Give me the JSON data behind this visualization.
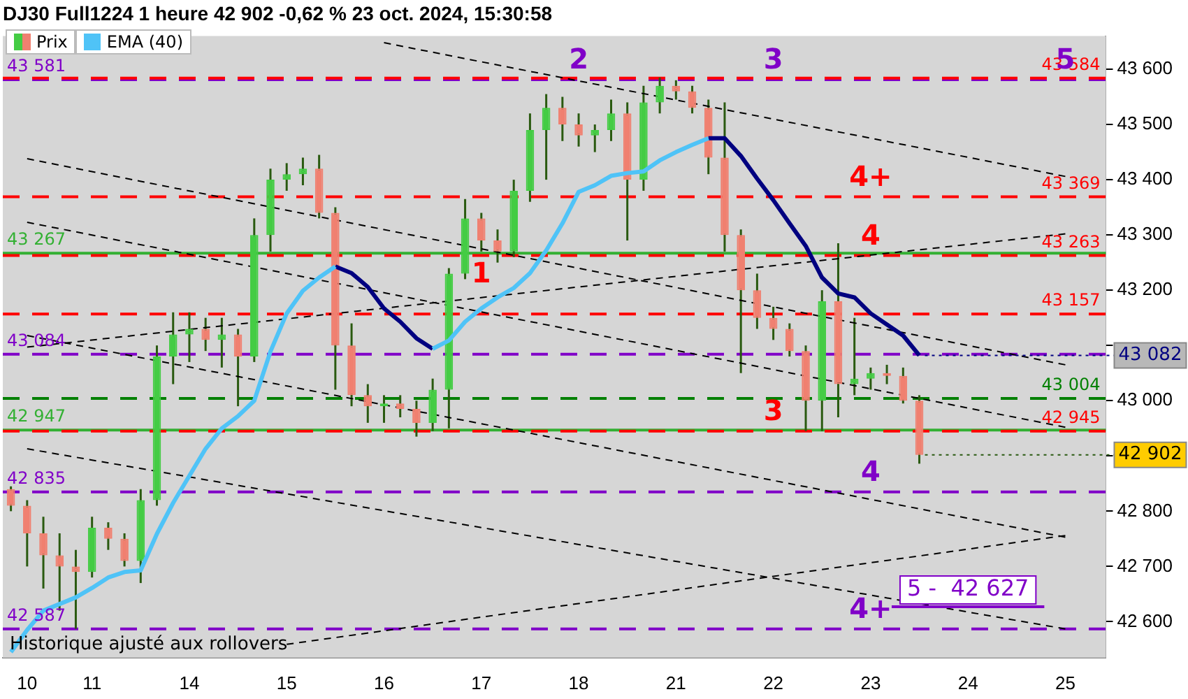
{
  "chart_data": {
    "type": "candlestick",
    "title": "DJ30 Full1224 1 heure 42 902 -0,62 % 23 oct. 2024, 15:30:58",
    "legend": "top left",
    "grid": false,
    "categories": [
      null,
      "10",
      null,
      null,
      null,
      "11",
      null,
      null,
      null,
      null,
      null,
      "14",
      null,
      null,
      null,
      null,
      null,
      "15",
      null,
      null,
      null,
      null,
      null,
      "16",
      null,
      null,
      null,
      null,
      null,
      "17",
      null,
      null,
      null,
      null,
      null,
      "18",
      null,
      null,
      null,
      null,
      null,
      "21",
      null,
      null,
      null,
      null,
      null,
      "22",
      null,
      null,
      null,
      null,
      null,
      "23",
      null,
      null,
      null,
      null,
      null,
      "24",
      null,
      null,
      null,
      null,
      null,
      "25",
      null,
      null
    ],
    "ylim": [
      42535,
      43660
    ],
    "yticks": [
      {
        "value": 42600,
        "label": "42 600"
      },
      {
        "value": 42700,
        "label": "42 700"
      },
      {
        "value": 42800,
        "label": "42 800"
      },
      {
        "value": 42900,
        "label": null
      },
      {
        "value": 43000,
        "label": "43 000"
      },
      {
        "value": 43100,
        "label": null
      },
      {
        "value": 43200,
        "label": "43 200"
      },
      {
        "value": 43300,
        "label": "43 300"
      },
      {
        "value": 43400,
        "label": "43 400"
      },
      {
        "value": 43500,
        "label": "43 500"
      },
      {
        "value": 43600,
        "label": "43 600"
      }
    ],
    "series": [
      {
        "name": "Prix",
        "color": "#2a5a10",
        "value_labels": [
          null,
          null,
          null,
          null,
          null,
          null,
          null,
          null,
          null,
          null,
          null,
          null,
          null,
          null,
          null,
          null,
          null,
          null,
          null,
          null,
          null,
          null,
          null,
          null,
          null,
          null,
          null,
          null,
          null,
          null,
          null,
          null,
          null,
          null,
          null,
          null,
          null,
          null,
          null,
          null,
          null,
          null,
          null,
          null,
          null,
          null,
          null,
          null,
          null,
          null,
          null,
          null,
          null,
          null,
          null,
          null,
          "42 902",
          null,
          null,
          null,
          null,
          null,
          null,
          null,
          null,
          null,
          null,
          null
        ],
        "ohlc": [
          [
            42840,
            42845,
            42800,
            42810
          ],
          [
            42810,
            42820,
            42700,
            42760
          ],
          [
            42760,
            42790,
            42660,
            42720
          ],
          [
            42720,
            42760,
            42620,
            42700
          ],
          [
            42700,
            42730,
            42587,
            42690
          ],
          [
            42690,
            42790,
            42680,
            42770
          ],
          [
            42770,
            42780,
            42730,
            42750
          ],
          [
            42750,
            42760,
            42700,
            42710
          ],
          [
            42710,
            42840,
            42670,
            42820
          ],
          [
            42820,
            43100,
            42810,
            43080
          ],
          [
            43080,
            43160,
            43030,
            43120
          ],
          [
            43120,
            43160,
            43070,
            43130
          ],
          [
            43130,
            43150,
            43090,
            43110
          ],
          [
            43110,
            43150,
            43060,
            43120
          ],
          [
            43120,
            43130,
            42990,
            43080
          ],
          [
            43080,
            43330,
            43070,
            43300
          ],
          [
            43300,
            43420,
            43270,
            43400
          ],
          [
            43400,
            43430,
            43380,
            43410
          ],
          [
            43410,
            43440,
            43390,
            43420
          ],
          [
            43420,
            43445,
            43330,
            43340
          ],
          [
            43340,
            43350,
            43020,
            43100
          ],
          [
            43100,
            43140,
            42990,
            43010
          ],
          [
            43010,
            43030,
            42960,
            42990
          ],
          [
            42990,
            43010,
            42960,
            42995
          ],
          [
            42995,
            43010,
            42970,
            42985
          ],
          [
            42985,
            43000,
            42935,
            42960
          ],
          [
            42960,
            43040,
            42945,
            43020
          ],
          [
            43020,
            43240,
            42950,
            43230
          ],
          [
            43230,
            43365,
            43220,
            43330
          ],
          [
            43330,
            43340,
            43270,
            43290
          ],
          [
            43290,
            43310,
            43250,
            43270
          ],
          [
            43270,
            43400,
            43260,
            43380
          ],
          [
            43380,
            43520,
            43360,
            43490
          ],
          [
            43490,
            43555,
            43400,
            43530
          ],
          [
            43530,
            43550,
            43470,
            43500
          ],
          [
            43500,
            43520,
            43460,
            43480
          ],
          [
            43480,
            43500,
            43450,
            43490
          ],
          [
            43490,
            43545,
            43470,
            43520
          ],
          [
            43520,
            43540,
            43290,
            43400
          ],
          [
            43400,
            43570,
            43380,
            43540
          ],
          [
            43540,
            43585,
            43520,
            43570
          ],
          [
            43570,
            43580,
            43545,
            43560
          ],
          [
            43560,
            43570,
            43520,
            43530
          ],
          [
            43530,
            43545,
            43410,
            43440
          ],
          [
            43440,
            43540,
            43270,
            43300
          ],
          [
            43300,
            43310,
            43050,
            43200
          ],
          [
            43200,
            43230,
            43130,
            43150
          ],
          [
            43150,
            43170,
            43110,
            43130
          ],
          [
            43130,
            43140,
            43080,
            43090
          ],
          [
            43090,
            43100,
            42945,
            43000
          ],
          [
            43000,
            43200,
            42945,
            43180
          ],
          [
            43180,
            43285,
            42970,
            43030
          ],
          [
            43030,
            43150,
            43010,
            43040
          ],
          [
            43040,
            43060,
            43020,
            43050
          ],
          [
            43050,
            43065,
            43030,
            43045
          ],
          [
            43045,
            43060,
            42995,
            43000
          ],
          [
            43000,
            43010,
            42886,
            42902
          ],
          null,
          null,
          null,
          null,
          null,
          null,
          null,
          null,
          null,
          null,
          null
        ],
        "colors": [
          "#f08070",
          "#f08070",
          "#f08070",
          "#f08070",
          "#f08070",
          "#44cc44",
          "#f08070",
          "#f08070",
          "#44cc44",
          "#44cc44",
          "#44cc44",
          "#44cc44",
          "#f08070",
          "#44cc44",
          "#f08070",
          "#44cc44",
          "#44cc44",
          "#44cc44",
          "#44cc44",
          "#f08070",
          "#f08070",
          "#f08070",
          "#f08070",
          "#44cc44",
          "#f08070",
          "#f08070",
          "#44cc44",
          "#44cc44",
          "#44cc44",
          "#f08070",
          "#f08070",
          "#44cc44",
          "#44cc44",
          "#44cc44",
          "#f08070",
          "#f08070",
          "#44cc44",
          "#44cc44",
          "#f08070",
          "#44cc44",
          "#44cc44",
          "#f08070",
          "#f08070",
          "#f08070",
          "#f08070",
          "#f08070",
          "#f08070",
          "#f08070",
          "#f08070",
          "#f08070",
          "#44cc44",
          "#f08070",
          "#44cc44",
          "#44cc44",
          "#f08070",
          "#f08070",
          "#f08070",
          null,
          null,
          null,
          null,
          null,
          null,
          null,
          null,
          null,
          null,
          null
        ]
      },
      {
        "name": "EMA (40)",
        "type": "line",
        "color": "#4fc3f7",
        "values": [
          42545,
          42585,
          42620,
          42632,
          42644,
          42661,
          42680,
          42690,
          42693,
          42759,
          42815,
          42864,
          42913,
          42950,
          42972,
          43000,
          43089,
          43158,
          43199,
          43223,
          43243,
          null,
          null,
          null,
          null,
          null,
          43094,
          43109,
          43143,
          43167,
          43187,
          43204,
          43231,
          43272,
          43321,
          43378,
          43390,
          43407,
          43412,
          43415,
          43435,
          43450,
          43463,
          43475,
          null,
          null,
          null,
          null,
          null,
          null,
          null,
          null,
          null,
          null,
          null,
          null,
          null,
          null,
          null,
          null,
          null,
          null,
          null,
          null,
          null,
          null,
          null,
          null
        ]
      },
      {
        "type": "line",
        "color": "#000080",
        "value_labels": [
          null,
          null,
          null,
          null,
          null,
          null,
          null,
          null,
          null,
          null,
          null,
          null,
          null,
          null,
          null,
          null,
          null,
          null,
          null,
          null,
          null,
          null,
          null,
          null,
          null,
          null,
          null,
          null,
          null,
          null,
          null,
          null,
          null,
          null,
          null,
          null,
          null,
          null,
          null,
          null,
          null,
          null,
          null,
          null,
          null,
          null,
          null,
          null,
          null,
          null,
          null,
          null,
          null,
          null,
          null,
          null,
          "43 082",
          null,
          null,
          null,
          null,
          null,
          null,
          null,
          null,
          null,
          null,
          null
        ],
        "values": [
          null,
          null,
          null,
          null,
          null,
          null,
          null,
          null,
          null,
          null,
          null,
          null,
          null,
          null,
          null,
          null,
          null,
          null,
          null,
          null,
          43243,
          43231,
          43206,
          43167,
          43143,
          43113,
          43094,
          null,
          null,
          null,
          null,
          null,
          null,
          null,
          null,
          null,
          null,
          null,
          null,
          null,
          null,
          null,
          null,
          43475,
          43475,
          43443,
          43402,
          43363,
          43321,
          43280,
          43223,
          43194,
          43187,
          43158,
          43138,
          43118,
          43082,
          null,
          null,
          null,
          null,
          null,
          null,
          null,
          null,
          null,
          null,
          null
        ]
      },
      {
        "type": "line",
        "color": "#000000",
        "line_style": "dashed",
        "x": [
          "16",
          "25"
        ],
        "values": [
          43648,
          43406
        ]
      },
      {
        "type": "line",
        "color": "#000000",
        "line_style": "dashed",
        "x": [
          "10",
          "25"
        ],
        "values": [
          43438,
          43065
        ]
      },
      {
        "type": "line",
        "color": "#000000",
        "line_style": "dashed",
        "x": [
          "10",
          "25"
        ],
        "values": [
          43323,
          42952
        ]
      },
      {
        "type": "line",
        "color": "#000000",
        "line_style": "dashed",
        "x": [
          "10",
          "25"
        ],
        "values": [
          43118,
          42753
        ]
      },
      {
        "type": "line",
        "color": "#000000",
        "line_style": "dashed",
        "x": [
          "10",
          "25"
        ],
        "values": [
          42913,
          42587
        ]
      },
      {
        "type": "line",
        "color": "#000000",
        "line_style": "dashed",
        "x": [
          "10",
          "25"
        ],
        "values": [
          43097,
          43302
        ]
      },
      {
        "type": "line",
        "color": "#000000",
        "line_style": "dashed",
        "x": [
          "15",
          "25"
        ],
        "values": [
          42559,
          42756
        ]
      }
    ],
    "ref_lines": [
      {
        "axis": "y",
        "value": 43581,
        "label": "43 581",
        "color": "#8000c8",
        "line_style": "dashed"
      },
      {
        "axis": "y",
        "value": 43584,
        "label": "43 584",
        "color": "#ff0000",
        "line_style": "dashed"
      },
      {
        "axis": "y",
        "value": 43369,
        "label": "43 369",
        "color": "#ff0000",
        "line_style": "dashed"
      },
      {
        "axis": "y",
        "value": 43267,
        "label": "43 267",
        "color": "#33b033",
        "line_style": "solid"
      },
      {
        "axis": "y",
        "value": 43263,
        "label": "43 263",
        "color": "#ff0000",
        "line_style": "dashed"
      },
      {
        "axis": "y",
        "value": 43157,
        "label": "43 157",
        "color": "#ff0000",
        "line_style": "dashed"
      },
      {
        "axis": "y",
        "value": 43084,
        "label": "43 084",
        "color": "#8000c8",
        "line_style": "dashed"
      },
      {
        "axis": "y",
        "value": 43004,
        "label": "43 004",
        "color": "#008000",
        "line_style": "dashed"
      },
      {
        "axis": "y",
        "value": 42947,
        "label": "42 947",
        "color": "#33b033",
        "line_style": "solid"
      },
      {
        "axis": "y",
        "value": 42945,
        "label": "42 945",
        "color": "#ff0000",
        "line_style": "dashed"
      },
      {
        "axis": "y",
        "value": 42835,
        "label": "42 835",
        "color": "#8000c8",
        "line_style": "dashed"
      },
      {
        "axis": "y",
        "value": 42587,
        "label": "42 587",
        "color": "#8000c8",
        "line_style": "dashed"
      }
    ],
    "annotations": [
      {
        "text": "1",
        "x": "17",
        "y": 43194
      },
      {
        "text": "2",
        "x": "18",
        "y": 43581
      },
      {
        "text": "3",
        "x": "22",
        "y": 43581
      },
      {
        "text": "4+",
        "x": "23",
        "y": 43369
      },
      {
        "text": "4",
        "x": "23",
        "y": 43263
      },
      {
        "text": "5",
        "x": "25",
        "y": 43581
      },
      {
        "text": "3",
        "x": "22",
        "y": 42945
      },
      {
        "text": "4",
        "x": "23",
        "y": 42835
      },
      {
        "text": "4+",
        "x": "23",
        "y": 42587
      },
      {
        "text": "5 -  42 627",
        "x": "24",
        "y": 42627
      },
      "Historique ajusté aux rollovers"
    ]
  }
}
